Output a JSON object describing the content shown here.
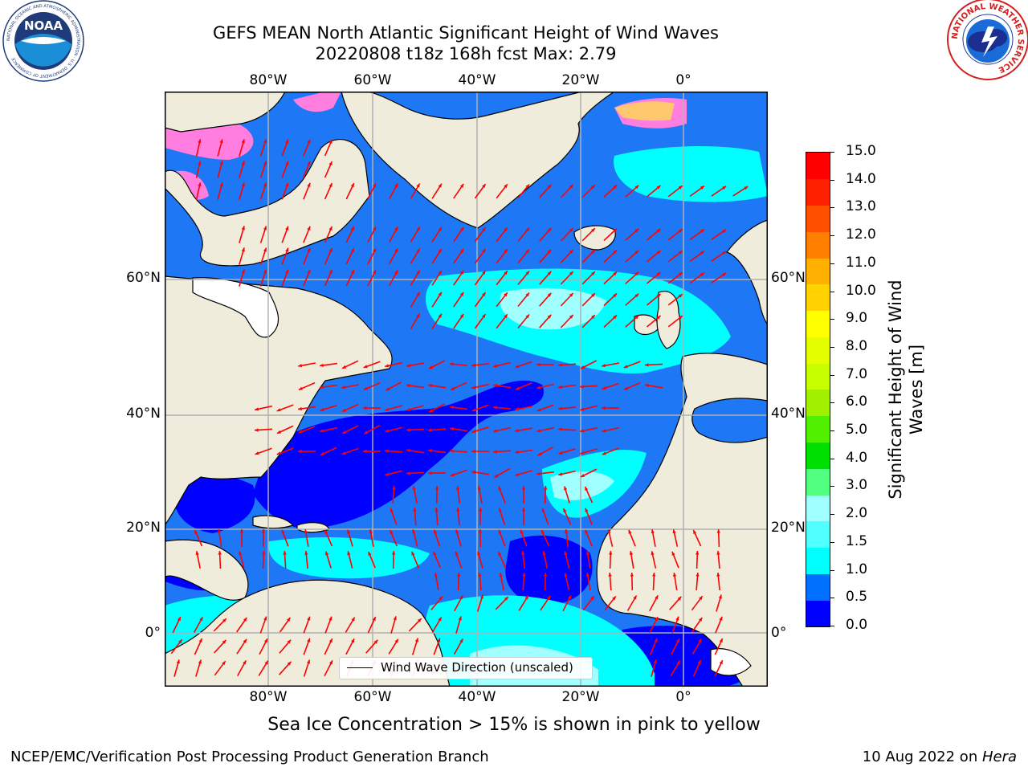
{
  "title": {
    "line1": "GEFS MEAN North Atlantic Significant Height of Wind Waves",
    "line2": "20220808 t18z 168h fcst   Max: 2.79"
  },
  "axes": {
    "lon_ticks": [
      "80°W",
      "60°W",
      "40°W",
      "20°W",
      "0°"
    ],
    "lat_ticks": [
      "60°N",
      "40°N",
      "20°N",
      "0°"
    ]
  },
  "colorbar": {
    "label": "Significant Height of Wind Waves [m]",
    "ticks": [
      "15.0",
      "14.0",
      "13.0",
      "12.0",
      "11.0",
      "10.0",
      "9.0",
      "8.0",
      "7.0",
      "6.0",
      "5.0",
      "4.0",
      "3.0",
      "2.0",
      "1.5",
      "1.0",
      "0.5",
      "0.0"
    ],
    "colors_bottom_to_top": [
      "#0000ff",
      "#0070ff",
      "#00ffff",
      "#50ffff",
      "#a0ffff",
      "#50ff80",
      "#00e000",
      "#50f000",
      "#a0f000",
      "#c8ff00",
      "#e6ff00",
      "#ffff00",
      "#ffd200",
      "#ffb000",
      "#ff8000",
      "#ff5000",
      "#ff2000",
      "#ff0000"
    ]
  },
  "legend": {
    "label": "Wind Wave Direction (unscaled)"
  },
  "note": "Sea Ice Concentration > 15% is shown in pink to yellow",
  "footer": {
    "left": "NCEP/EMC/Verification Post Processing Product Generation Branch",
    "date": "10 Aug 2022 on ",
    "machine": "Hera"
  },
  "logos": [
    {
      "name": "NOAA",
      "text": "NOAA",
      "ring_text": "NATIONAL OCEANIC AND ATMOSPHERIC ADMINISTRATION · U.S. DEPARTMENT OF COMMERCE"
    },
    {
      "name": "National Weather Service",
      "ring_text": "NATIONAL WEATHER SERVICE"
    }
  ],
  "colors": {
    "land": "#efecdc",
    "ocean_low": "#0000ff",
    "ocean_mid": "#1e78f5",
    "ocean_high": "#00ffff",
    "ocean_highest": "#a0ffff",
    "ice": "#ff7ee0",
    "arrow": "#ff0000",
    "grid": "#b0b0b0"
  }
}
